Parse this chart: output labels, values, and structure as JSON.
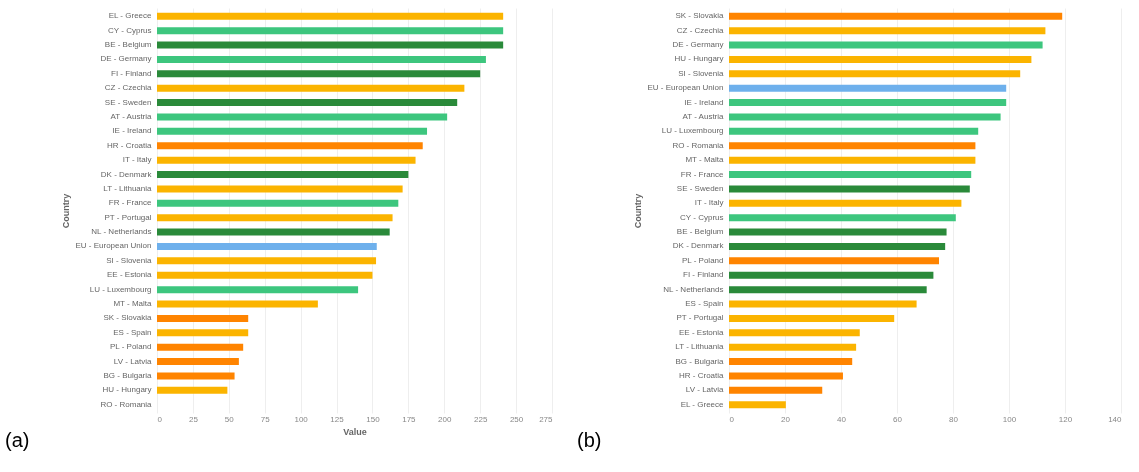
{
  "chart_data": [
    {
      "type": "bar",
      "orientation": "horizontal",
      "xlabel": "Value",
      "ylabel": "Country",
      "grid": "x",
      "annotations": [
        "(a)"
      ],
      "categories": [
        "EL - Greece",
        "CY - Cyprus",
        "BE - Belgium",
        "DE - Germany",
        "FI - Finland",
        "CZ - Czechia",
        "SE - Sweden",
        "AT - Austria",
        "IE - Ireland",
        "HR - Croatia",
        "IT - Italy",
        "DK - Denmark",
        "LT - Lithuania",
        "FR - France",
        "PT - Portugal",
        "NL - Netherlands",
        "EU - European Union",
        "SI - Slovenia",
        "EE - Estonia",
        "LU - Luxembourg",
        "MT - Malta",
        "SK - Slovakia",
        "ES - Spain",
        "PL - Poland",
        "LV - Latvia",
        "BG - Bulgaria",
        "HU - Hungary",
        "RO - Romania"
      ],
      "values": [
        241,
        241,
        241,
        229,
        225,
        214,
        209,
        202,
        188,
        185,
        180,
        175,
        171,
        168,
        164,
        162,
        153,
        152.5,
        150,
        140,
        112,
        63.5,
        63.5,
        60,
        57,
        54,
        49,
        null
      ],
      "colors": [
        "#fbb400",
        "#3dc67e",
        "#2a8a3a",
        "#3dc67e",
        "#2a8a3a",
        "#fbb400",
        "#2a8a3a",
        "#3dc67e",
        "#3dc67e",
        "#ff8400",
        "#fbb400",
        "#2a8a3a",
        "#fbb400",
        "#3dc67e",
        "#fbb400",
        "#2a8a3a",
        "#6eb0ec",
        "#fbb400",
        "#fbb400",
        "#3dc67e",
        "#fbb400",
        "#ff8400",
        "#fbb400",
        "#ff8400",
        "#ff8400",
        "#ff8400",
        "#fbb400",
        "#ff8400"
      ],
      "xlim": [
        0,
        275
      ],
      "xticks": [
        0,
        25,
        50,
        75,
        100,
        125,
        150,
        175,
        200,
        225,
        250,
        275
      ]
    },
    {
      "type": "bar",
      "orientation": "horizontal",
      "ylabel": "Country",
      "grid": "x",
      "annotations": [
        "(b)"
      ],
      "categories": [
        "SK - Slovakia",
        "CZ - Czechia",
        "DE - Germany",
        "HU - Hungary",
        "SI - Slovenia",
        "EU - European Union",
        "IE - Ireland",
        "AT - Austria",
        "LU - Luxembourg",
        "RO - Romania",
        "MT - Malta",
        "FR - France",
        "SE - Sweden",
        "IT - Italy",
        "CY - Cyprus",
        "BE - Belgium",
        "DK - Denmark",
        "PL - Poland",
        "FI - Finland",
        "NL - Netherlands",
        "ES - Spain",
        "PT - Portugal",
        "EE - Estonia",
        "LT - Lithuania",
        "BG - Bulgaria",
        "HR - Croatia",
        "LV - Latvia",
        "EL - Greece"
      ],
      "values": [
        119,
        113,
        112,
        108,
        104,
        99,
        99,
        97,
        89,
        88,
        88,
        86.5,
        86,
        83,
        81,
        77.7,
        77.2,
        75,
        73,
        70.6,
        67,
        59,
        46.7,
        45.4,
        44,
        40.7,
        33.3,
        20.3
      ],
      "colors": [
        "#ff8400",
        "#fbb400",
        "#3dc67e",
        "#fbb400",
        "#fbb400",
        "#6eb0ec",
        "#3dc67e",
        "#3dc67e",
        "#3dc67e",
        "#ff8400",
        "#fbb400",
        "#3dc67e",
        "#2a8a3a",
        "#fbb400",
        "#3dc67e",
        "#2a8a3a",
        "#2a8a3a",
        "#ff8400",
        "#2a8a3a",
        "#2a8a3a",
        "#fbb400",
        "#fbb400",
        "#fbb400",
        "#fbb400",
        "#ff8400",
        "#ff8400",
        "#ff8400",
        "#fbb400"
      ],
      "xlim": [
        0,
        140
      ],
      "xticks": [
        0,
        20,
        40,
        60,
        80,
        100,
        120,
        140
      ]
    }
  ]
}
